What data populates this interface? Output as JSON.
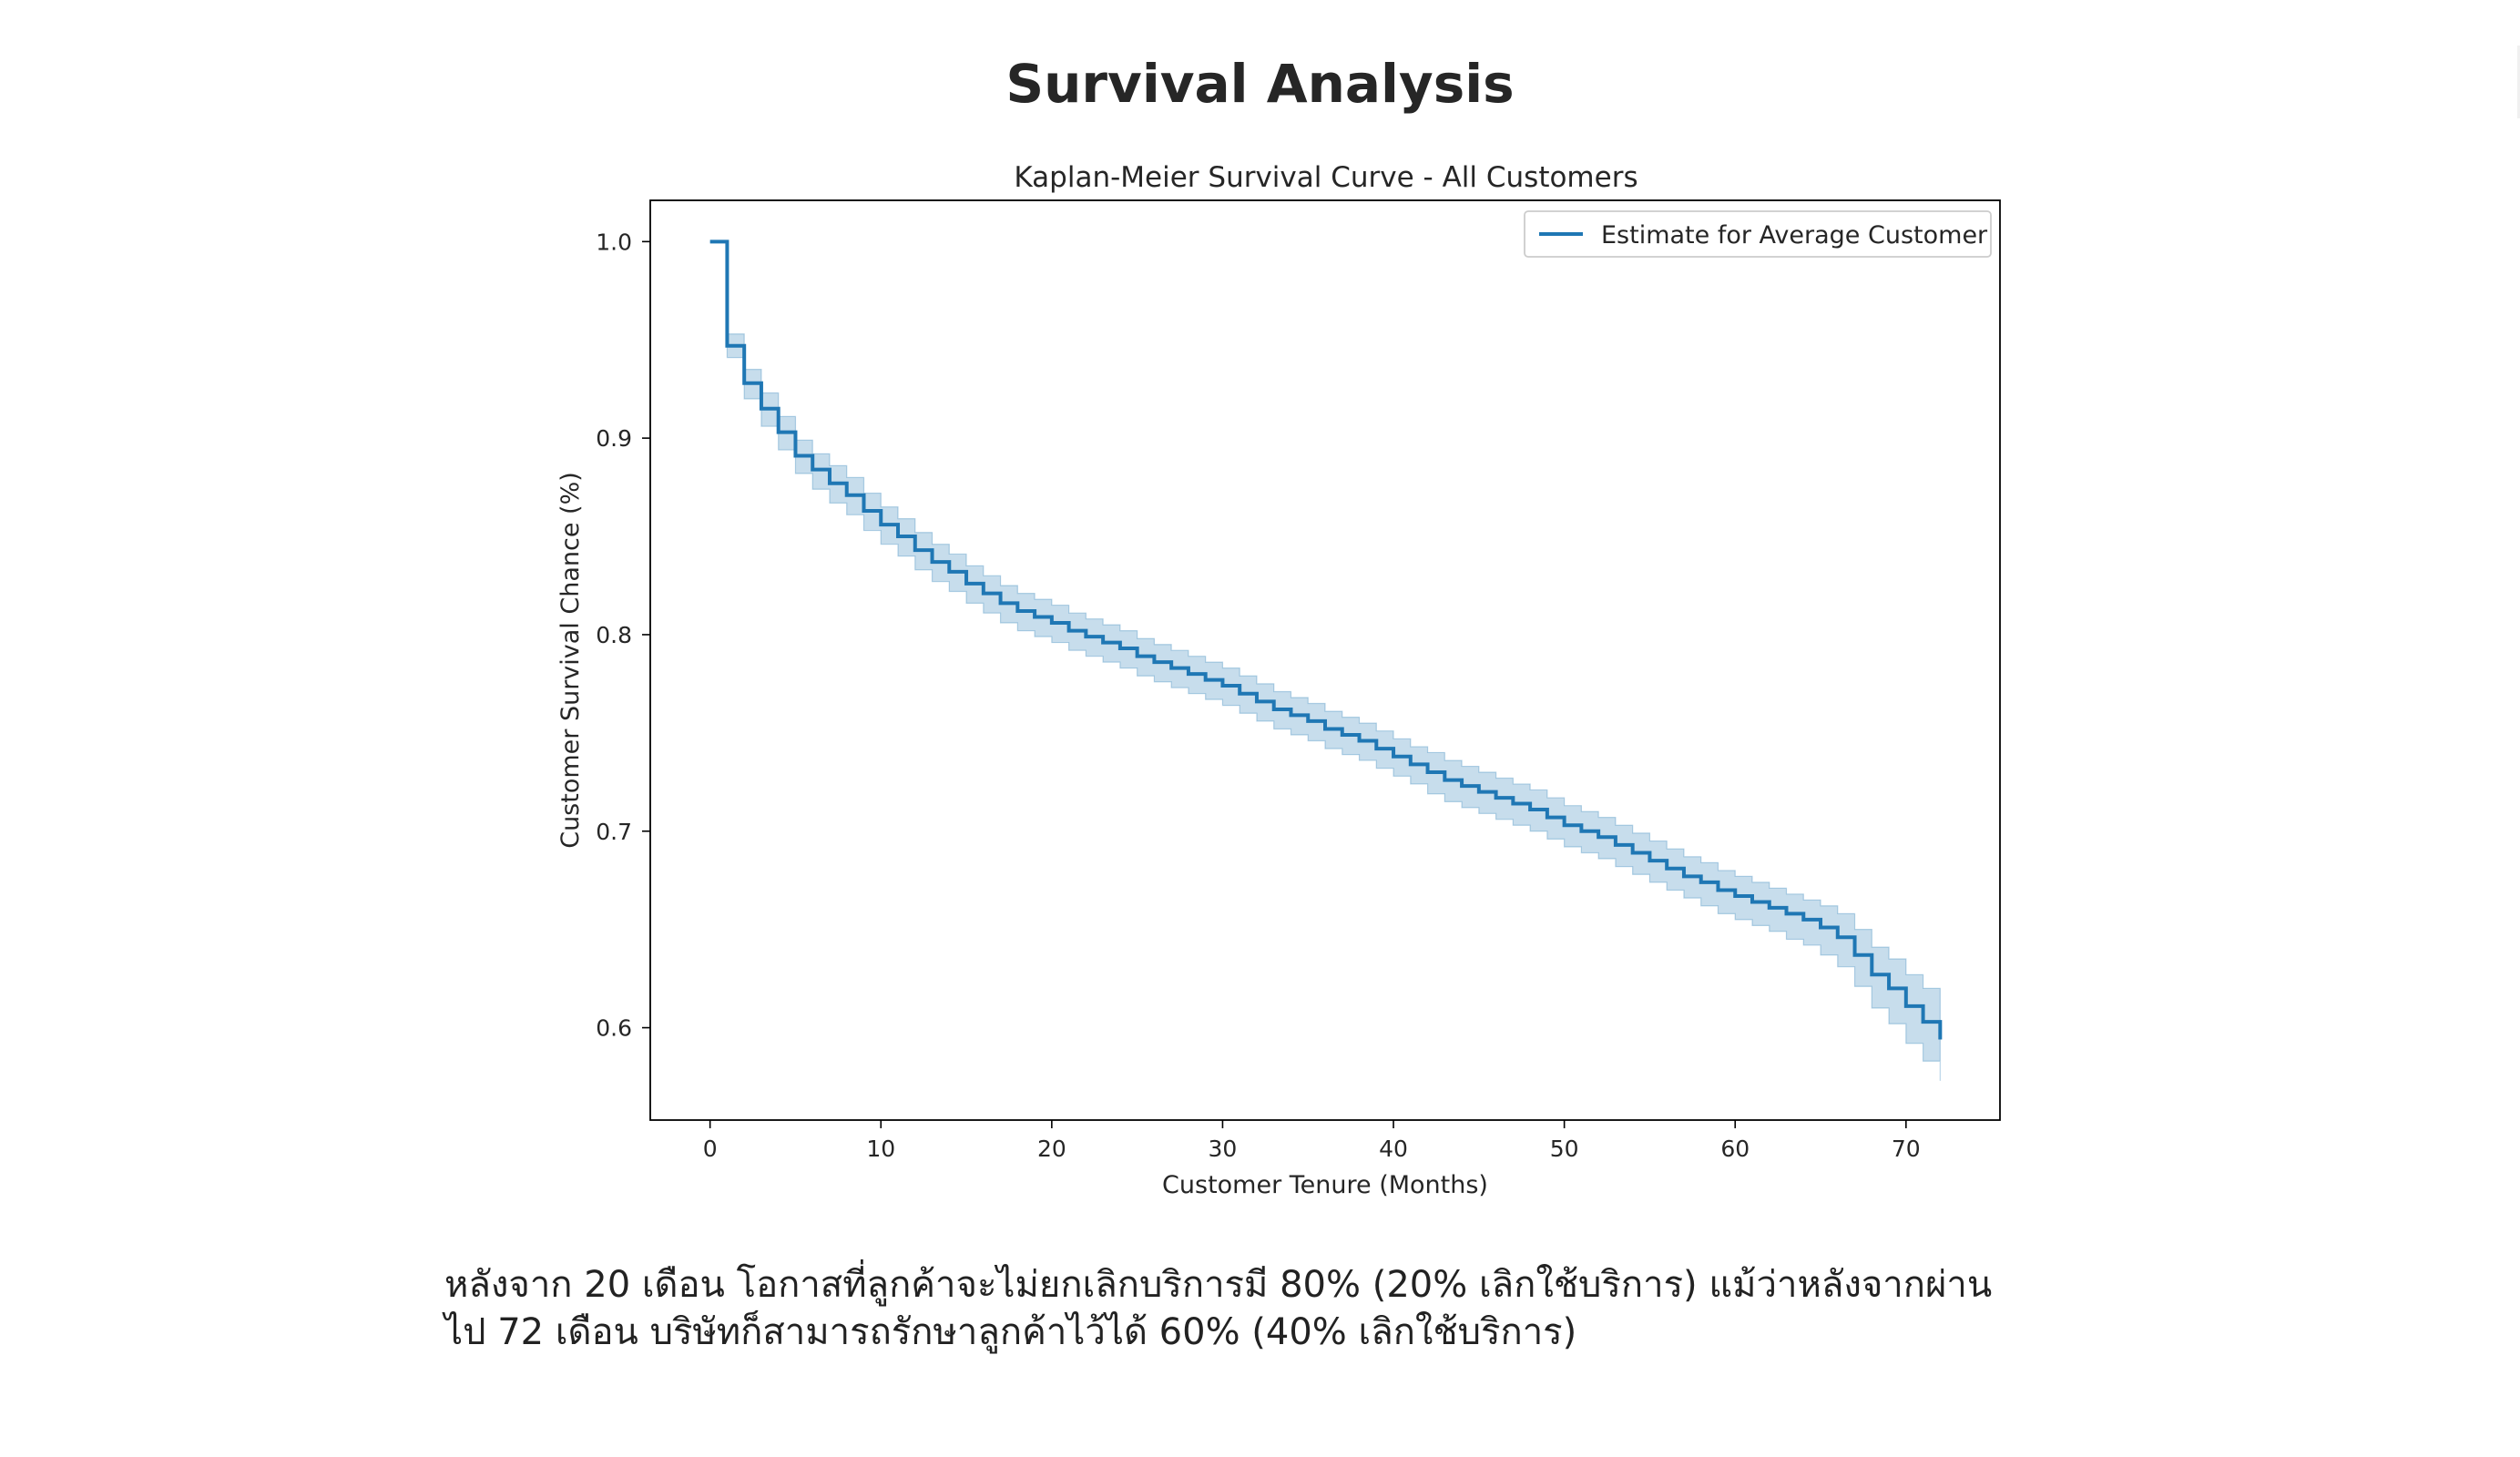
{
  "page": {
    "title": "Survival Analysis"
  },
  "caption": {
    "lines": [
      "หลังจาก 20 เดือน โอกาสที่ลูกค้าจะไม่ยกเลิกบริการมี 80% (20% เลิกใช้บริการ) แม้ว่าหลังจากผ่าน",
      "ไป 72 เดือน บริษัทก็สามารถรักษาลูกค้าไว้ได้ 60% (40% เลิกใช้บริการ)"
    ]
  },
  "chart_data": {
    "type": "line",
    "title": "Kaplan-Meier Survival Curve - All Customers",
    "xlabel": "Customer Tenure (Months)",
    "ylabel": "Customer Survival Chance (%)",
    "xlim": [
      -3.5,
      75.5
    ],
    "ylim": [
      0.553,
      1.021
    ],
    "xticks": [
      0,
      10,
      20,
      30,
      40,
      50,
      60,
      70
    ],
    "yticks": [
      0.6,
      0.7,
      0.8,
      0.9,
      1.0
    ],
    "xtick_labels": [
      "0",
      "10",
      "20",
      "30",
      "40",
      "50",
      "60",
      "70"
    ],
    "ytick_labels": [
      "0.6",
      "0.7",
      "0.8",
      "0.9",
      "1.0"
    ],
    "grid": false,
    "legend_position": "top-right",
    "step": "post",
    "line_color": "#1f77b4",
    "band_color": "#1f77b4",
    "series": [
      {
        "name": "Estimate for Average Customer",
        "x": [
          0,
          1,
          2,
          3,
          4,
          5,
          6,
          7,
          8,
          9,
          10,
          11,
          12,
          13,
          14,
          15,
          16,
          17,
          18,
          19,
          20,
          21,
          22,
          23,
          24,
          25,
          26,
          27,
          28,
          29,
          30,
          31,
          32,
          33,
          34,
          35,
          36,
          37,
          38,
          39,
          40,
          41,
          42,
          43,
          44,
          45,
          46,
          47,
          48,
          49,
          50,
          51,
          52,
          53,
          54,
          55,
          56,
          57,
          58,
          59,
          60,
          61,
          62,
          63,
          64,
          65,
          66,
          67,
          68,
          69,
          70,
          71,
          72
        ],
        "y": [
          1.0,
          0.947,
          0.928,
          0.915,
          0.903,
          0.891,
          0.884,
          0.877,
          0.871,
          0.863,
          0.856,
          0.85,
          0.843,
          0.837,
          0.832,
          0.826,
          0.821,
          0.816,
          0.812,
          0.809,
          0.806,
          0.802,
          0.799,
          0.796,
          0.793,
          0.789,
          0.786,
          0.783,
          0.78,
          0.777,
          0.774,
          0.77,
          0.766,
          0.762,
          0.759,
          0.756,
          0.752,
          0.749,
          0.746,
          0.742,
          0.738,
          0.734,
          0.73,
          0.726,
          0.723,
          0.72,
          0.717,
          0.714,
          0.711,
          0.707,
          0.703,
          0.7,
          0.697,
          0.693,
          0.689,
          0.685,
          0.681,
          0.677,
          0.674,
          0.67,
          0.667,
          0.664,
          0.661,
          0.658,
          0.655,
          0.651,
          0.646,
          0.637,
          0.627,
          0.62,
          0.611,
          0.603,
          0.594
        ],
        "ci_lower": [
          1.0,
          0.941,
          0.92,
          0.906,
          0.894,
          0.882,
          0.874,
          0.867,
          0.861,
          0.853,
          0.846,
          0.84,
          0.833,
          0.827,
          0.822,
          0.816,
          0.811,
          0.806,
          0.802,
          0.799,
          0.796,
          0.792,
          0.789,
          0.786,
          0.783,
          0.779,
          0.776,
          0.773,
          0.77,
          0.767,
          0.764,
          0.76,
          0.756,
          0.752,
          0.749,
          0.746,
          0.742,
          0.739,
          0.736,
          0.732,
          0.728,
          0.724,
          0.719,
          0.715,
          0.712,
          0.709,
          0.706,
          0.703,
          0.7,
          0.696,
          0.692,
          0.689,
          0.686,
          0.682,
          0.678,
          0.674,
          0.67,
          0.666,
          0.662,
          0.658,
          0.655,
          0.652,
          0.649,
          0.645,
          0.642,
          0.637,
          0.631,
          0.621,
          0.61,
          0.602,
          0.592,
          0.583,
          0.573
        ],
        "ci_upper": [
          1.0,
          0.953,
          0.935,
          0.923,
          0.911,
          0.899,
          0.892,
          0.886,
          0.88,
          0.872,
          0.865,
          0.859,
          0.852,
          0.846,
          0.841,
          0.835,
          0.83,
          0.825,
          0.821,
          0.818,
          0.815,
          0.811,
          0.808,
          0.805,
          0.802,
          0.798,
          0.795,
          0.792,
          0.789,
          0.786,
          0.783,
          0.779,
          0.775,
          0.771,
          0.768,
          0.765,
          0.761,
          0.758,
          0.755,
          0.751,
          0.747,
          0.743,
          0.74,
          0.736,
          0.733,
          0.73,
          0.727,
          0.724,
          0.721,
          0.717,
          0.713,
          0.71,
          0.707,
          0.703,
          0.699,
          0.695,
          0.691,
          0.687,
          0.684,
          0.68,
          0.677,
          0.674,
          0.671,
          0.668,
          0.665,
          0.662,
          0.658,
          0.65,
          0.641,
          0.635,
          0.627,
          0.62,
          0.614
        ]
      }
    ]
  }
}
